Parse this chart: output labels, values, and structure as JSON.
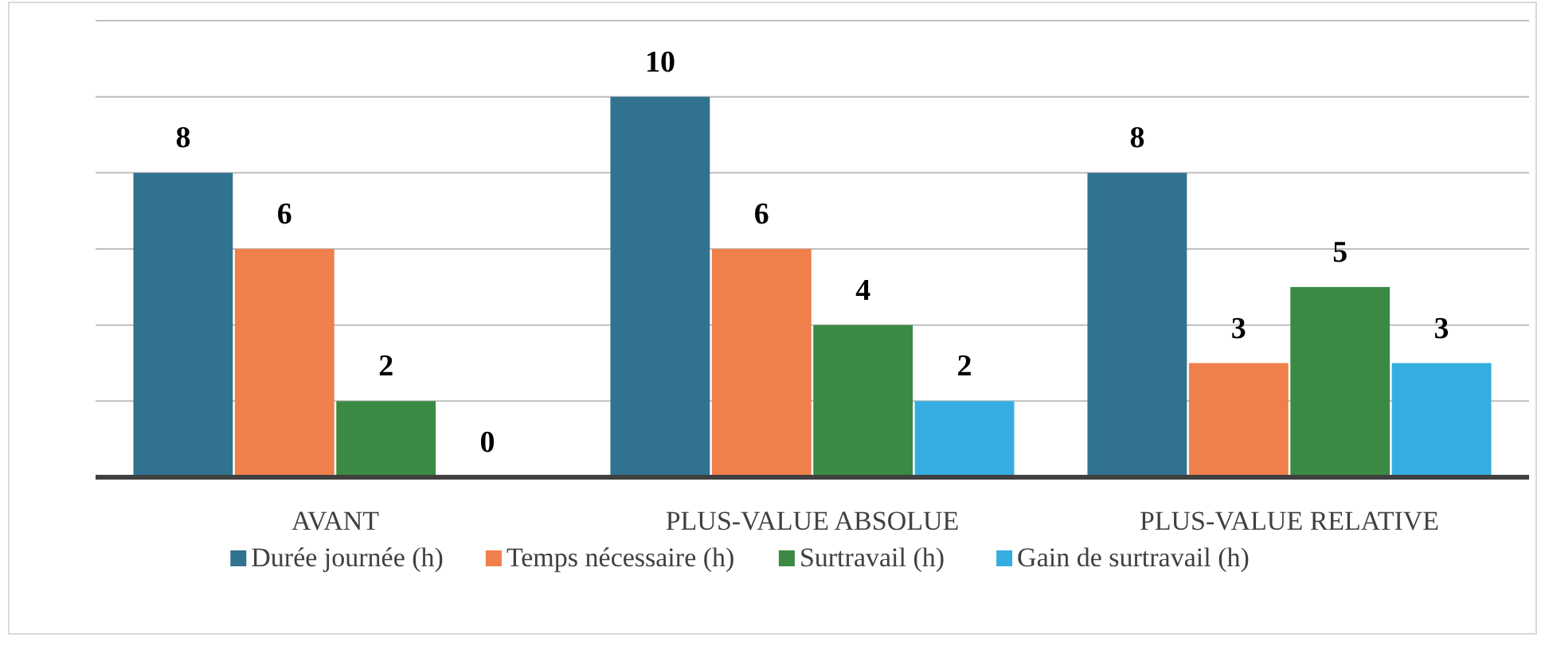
{
  "chart_data": {
    "type": "bar",
    "categories": [
      "AVANT",
      "PLUS-VALUE ABSOLUE",
      "PLUS-VALUE RELATIVE"
    ],
    "series": [
      {
        "name": "Durée journée (h)",
        "color": "#31738f",
        "values": [
          8,
          10,
          8
        ]
      },
      {
        "name": "Temps nécessaire (h)",
        "color": "#ef7f4b",
        "values": [
          6,
          6,
          3
        ]
      },
      {
        "name": "Surtravail (h)",
        "color": "#3a8a43",
        "values": [
          2,
          4,
          5
        ]
      },
      {
        "name": "Gain de surtravail (h)",
        "color": "#36ade0",
        "values": [
          0,
          2,
          3
        ]
      }
    ],
    "ylim": [
      0,
      12
    ],
    "yticks": [
      {
        "value": 0,
        "label": null
      },
      {
        "value": 2,
        "label": null
      },
      {
        "value": 4,
        "label": null
      },
      {
        "value": 6,
        "label": null
      },
      {
        "value": 8,
        "label": null
      },
      {
        "value": 10,
        "label": null
      },
      {
        "value": 12,
        "label": null
      }
    ],
    "tick_labels": "x",
    "grid": "y",
    "data_labels": true,
    "legend": "bottom"
  }
}
